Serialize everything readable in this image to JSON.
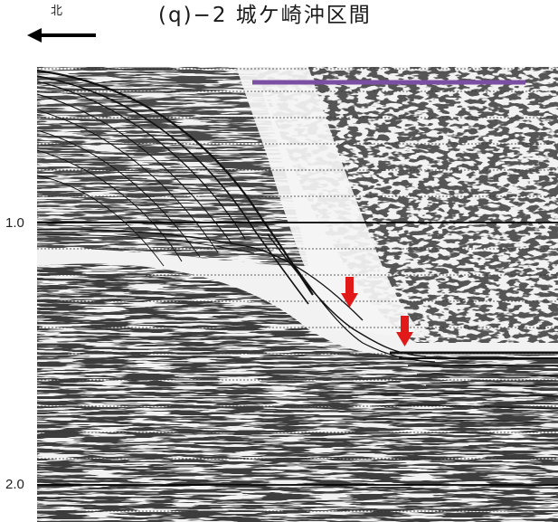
{
  "header": {
    "north_label": "北",
    "title": "(q)−2 城ケ崎沖区間"
  },
  "axis": {
    "labels": [
      "1.0",
      "2.0"
    ]
  },
  "icons": {
    "north_arrow": "left-arrow-icon",
    "fault_marker": "down-arrow-icon"
  },
  "colors": {
    "highlight_bar": "#7b4fa1",
    "fault_marker": "#e11919",
    "major_line": "#000000",
    "minor_line": "#333333"
  }
}
